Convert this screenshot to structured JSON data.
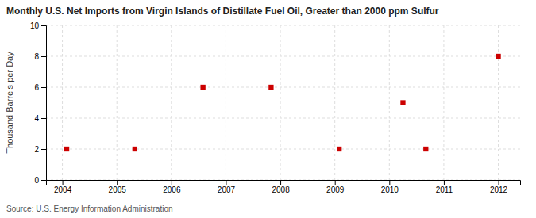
{
  "chart_data": {
    "type": "scatter",
    "title": "Monthly U.S. Net Imports from Virgin Islands of Distillate Fuel Oil, Greater than 2000 ppm Sulfur",
    "ylabel": "Thousand Barrels per Day",
    "annotations": [
      "Source: U.S. Energy Information Administration"
    ],
    "x": [
      2004.08,
      2005.33,
      2006.58,
      2007.83,
      2009.08,
      2010.25,
      2010.67,
      2012.0
    ],
    "values": [
      2,
      2,
      6,
      6,
      2,
      5,
      2,
      8
    ],
    "color": "#cc0000",
    "marker": "square",
    "xlim": [
      2003.7,
      2012.4
    ],
    "xticks": [
      2004,
      2005,
      2006,
      2007,
      2008,
      2009,
      2010,
      2011,
      2012
    ],
    "ylim": [
      0,
      10
    ],
    "yticks": [
      0,
      2,
      4,
      6,
      8,
      10
    ],
    "grid": true
  }
}
